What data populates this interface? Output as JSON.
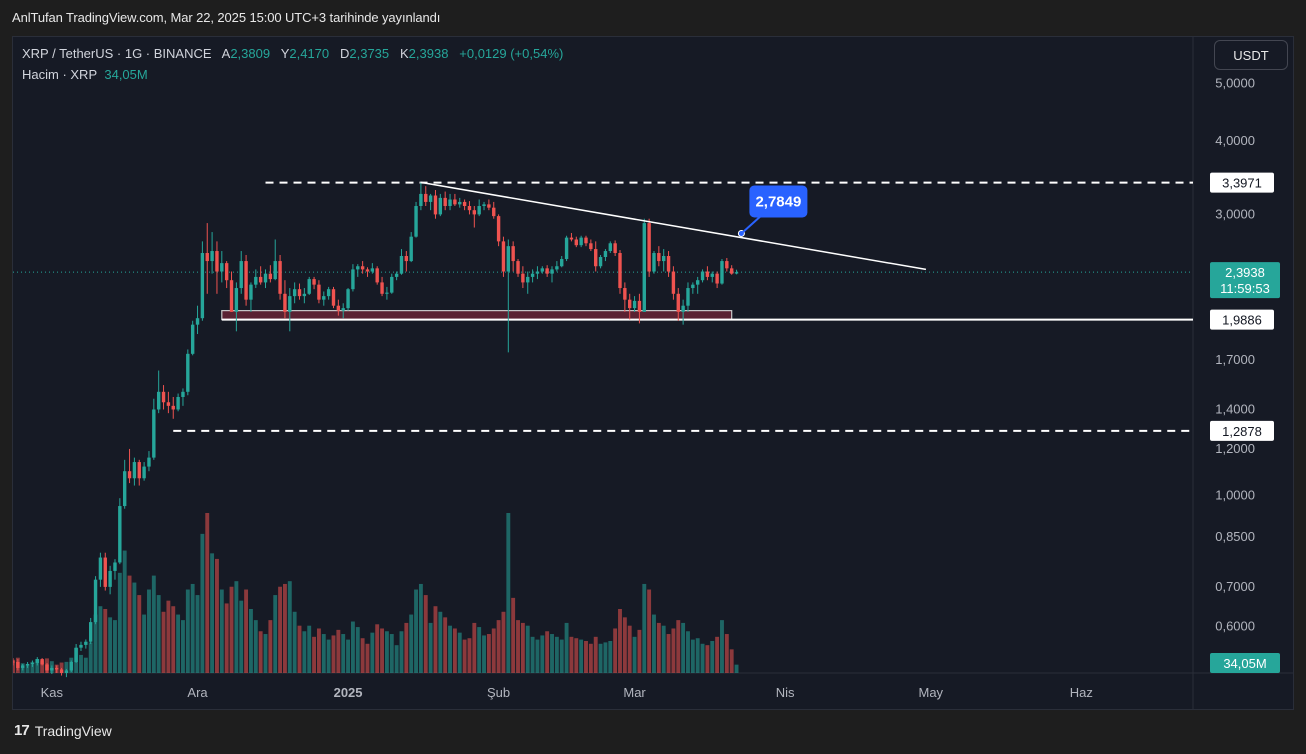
{
  "header": {
    "published": "AnlTufan TradingView.com, Mar 22, 2025 15:00 UTC+3 tarihinde yayınlandı"
  },
  "legend": {
    "symbol": "XRP / TetherUS · 1G · BINANCE",
    "open_label": "A",
    "open": "2,3809",
    "high_label": "Y",
    "high": "2,4170",
    "low_label": "D",
    "low": "2,3735",
    "close_label": "K",
    "close": "2,3938",
    "change": "+0,0129 (+0,54%)",
    "volume_label": "Hacim · XRP",
    "volume": "34,05M"
  },
  "currency_button": "USDT",
  "footer": {
    "brand": "TradingView",
    "logo": "17"
  },
  "colors": {
    "up": "#26a69a",
    "down": "#ef5350",
    "callout": "#2962ff"
  },
  "chart_data": {
    "type": "candlestick",
    "symbol": "XRP / TetherUS",
    "timeframe": "1G",
    "exchange": "BINANCE",
    "y_scale": "log",
    "ylim": [
      0.5,
      6.0
    ],
    "y_ticks": [
      {
        "value": 5.0,
        "label": "5,0000"
      },
      {
        "value": 4.0,
        "label": "4,0000"
      },
      {
        "value": 3.0,
        "label": "3,0000"
      },
      {
        "value": 1.7,
        "label": "1,7000"
      },
      {
        "value": 1.4,
        "label": "1,4000"
      },
      {
        "value": 1.2,
        "label": "1,2000"
      },
      {
        "value": 1.0,
        "label": "1,0000"
      },
      {
        "value": 0.85,
        "label": "0,8500"
      },
      {
        "value": 0.7,
        "label": "0,7000"
      },
      {
        "value": 0.6,
        "label": "0,6000"
      }
    ],
    "x_ticks": [
      {
        "date": "2024-11-01",
        "label": "Kas",
        "bold": false
      },
      {
        "date": "2024-12-01",
        "label": "Ara",
        "bold": false
      },
      {
        "date": "2025-01-01",
        "label": "2025",
        "bold": true
      },
      {
        "date": "2025-02-01",
        "label": "Şub",
        "bold": false
      },
      {
        "date": "2025-03-01",
        "label": "Mar",
        "bold": false
      },
      {
        "date": "2025-04-01",
        "label": "Nis",
        "bold": false
      },
      {
        "date": "2025-05-01",
        "label": "May",
        "bold": false
      },
      {
        "date": "2025-06-01",
        "label": "Haz",
        "bold": false
      }
    ],
    "x_range": [
      "2024-10-24",
      "2025-06-24"
    ],
    "last_price": {
      "value": 2.3938,
      "label": "2,3938",
      "countdown": "11:59:53"
    },
    "volume_last_label": "34,05M",
    "levels": [
      {
        "value": 3.3971,
        "label": "3,3971",
        "style": "dashed",
        "from": "2024-12-15"
      },
      {
        "value": 1.9886,
        "label": "1,9886",
        "style": "solid",
        "from": "2024-12-06"
      },
      {
        "value": 1.2878,
        "label": "1,2878",
        "style": "dashed",
        "from": "2024-11-26"
      }
    ],
    "support_zone": {
      "from": "2024-12-06",
      "to": "2025-03-21",
      "low": 1.99,
      "high": 2.06
    },
    "trendline": {
      "start": {
        "date": "2025-01-16",
        "value": 3.4
      },
      "end": {
        "date": "2025-04-30",
        "value": 2.42
      }
    },
    "callout": {
      "label": "2,7849",
      "date": "2025-03-23",
      "value": 2.7849
    },
    "candles": [
      [
        "2024-10-24",
        0.523,
        0.53,
        0.515,
        0.522,
        95
      ],
      [
        "2024-10-25",
        0.522,
        0.528,
        0.505,
        0.51,
        110
      ],
      [
        "2024-10-26",
        0.51,
        0.518,
        0.505,
        0.515,
        70
      ],
      [
        "2024-10-27",
        0.515,
        0.522,
        0.51,
        0.518,
        60
      ],
      [
        "2024-10-28",
        0.518,
        0.525,
        0.512,
        0.52,
        80
      ],
      [
        "2024-10-29",
        0.52,
        0.532,
        0.515,
        0.528,
        100
      ],
      [
        "2024-10-30",
        0.528,
        0.53,
        0.515,
        0.517,
        90
      ],
      [
        "2024-10-31",
        0.517,
        0.52,
        0.5,
        0.505,
        105
      ],
      [
        "2024-11-01",
        0.505,
        0.515,
        0.498,
        0.51,
        85
      ],
      [
        "2024-11-02",
        0.51,
        0.515,
        0.5,
        0.507,
        60
      ],
      [
        "2024-11-03",
        0.507,
        0.51,
        0.495,
        0.5,
        75
      ],
      [
        "2024-11-04",
        0.5,
        0.508,
        0.492,
        0.505,
        80
      ],
      [
        "2024-11-05",
        0.505,
        0.525,
        0.502,
        0.522,
        110
      ],
      [
        "2024-11-06",
        0.522,
        0.56,
        0.52,
        0.552,
        180
      ],
      [
        "2024-11-07",
        0.552,
        0.565,
        0.545,
        0.558,
        130
      ],
      [
        "2024-11-08",
        0.558,
        0.57,
        0.55,
        0.565,
        110
      ],
      [
        "2024-11-09",
        0.565,
        0.62,
        0.56,
        0.61,
        220
      ],
      [
        "2024-11-10",
        0.61,
        0.73,
        0.605,
        0.72,
        420
      ],
      [
        "2024-11-11",
        0.72,
        0.8,
        0.7,
        0.785,
        480
      ],
      [
        "2024-11-12",
        0.785,
        0.8,
        0.69,
        0.7,
        460
      ],
      [
        "2024-11-13",
        0.7,
        0.76,
        0.68,
        0.745,
        400
      ],
      [
        "2024-11-14",
        0.745,
        0.78,
        0.72,
        0.77,
        380
      ],
      [
        "2024-11-15",
        0.77,
        0.99,
        0.765,
        0.96,
        720
      ],
      [
        "2024-11-16",
        0.96,
        1.15,
        0.95,
        1.1,
        880
      ],
      [
        "2024-11-17",
        1.1,
        1.2,
        1.05,
        1.07,
        700
      ],
      [
        "2024-11-18",
        1.07,
        1.16,
        1.04,
        1.14,
        650
      ],
      [
        "2024-11-19",
        1.14,
        1.15,
        1.04,
        1.07,
        560
      ],
      [
        "2024-11-20",
        1.07,
        1.14,
        1.06,
        1.12,
        420
      ],
      [
        "2024-11-21",
        1.12,
        1.19,
        1.1,
        1.16,
        600
      ],
      [
        "2024-11-22",
        1.16,
        1.46,
        1.15,
        1.4,
        700
      ],
      [
        "2024-11-23",
        1.4,
        1.63,
        1.38,
        1.5,
        560
      ],
      [
        "2024-11-24",
        1.5,
        1.54,
        1.4,
        1.44,
        440
      ],
      [
        "2024-11-25",
        1.44,
        1.5,
        1.38,
        1.42,
        520
      ],
      [
        "2024-11-26",
        1.42,
        1.47,
        1.35,
        1.4,
        480
      ],
      [
        "2024-11-27",
        1.4,
        1.49,
        1.39,
        1.47,
        420
      ],
      [
        "2024-11-28",
        1.47,
        1.52,
        1.42,
        1.5,
        380
      ],
      [
        "2024-11-29",
        1.5,
        1.77,
        1.48,
        1.74,
        600
      ],
      [
        "2024-11-30",
        1.74,
        1.98,
        1.73,
        1.95,
        640
      ],
      [
        "2024-12-01",
        1.95,
        2.1,
        1.88,
        2.0,
        560
      ],
      [
        "2024-12-02",
        2.0,
        2.7,
        1.98,
        2.58,
        1000
      ],
      [
        "2024-12-03",
        2.58,
        2.9,
        2.2,
        2.5,
        1150
      ],
      [
        "2024-12-04",
        2.5,
        2.8,
        2.38,
        2.6,
        860
      ],
      [
        "2024-12-05",
        2.6,
        2.7,
        2.2,
        2.4,
        820
      ],
      [
        "2024-12-06",
        2.4,
        2.6,
        2.3,
        2.48,
        600
      ],
      [
        "2024-12-07",
        2.48,
        2.5,
        2.25,
        2.32,
        500
      ],
      [
        "2024-12-08",
        2.32,
        2.4,
        2.05,
        2.05,
        620
      ],
      [
        "2024-12-09",
        2.05,
        2.3,
        1.9,
        2.25,
        660
      ],
      [
        "2024-12-10",
        2.25,
        2.6,
        2.2,
        2.5,
        520
      ],
      [
        "2024-12-11",
        2.5,
        2.56,
        2.1,
        2.15,
        600
      ],
      [
        "2024-12-12",
        2.15,
        2.3,
        2.05,
        2.28,
        460
      ],
      [
        "2024-12-13",
        2.28,
        2.42,
        2.25,
        2.35,
        380
      ],
      [
        "2024-12-14",
        2.35,
        2.45,
        2.28,
        2.3,
        300
      ],
      [
        "2024-12-15",
        2.3,
        2.42,
        2.25,
        2.38,
        280
      ],
      [
        "2024-12-16",
        2.38,
        2.46,
        2.3,
        2.33,
        380
      ],
      [
        "2024-12-17",
        2.33,
        2.72,
        2.32,
        2.5,
        560
      ],
      [
        "2024-12-18",
        2.5,
        2.56,
        2.15,
        2.2,
        620
      ],
      [
        "2024-12-19",
        2.2,
        2.32,
        2.0,
        2.05,
        640
      ],
      [
        "2024-12-20",
        2.05,
        2.25,
        1.9,
        2.18,
        660
      ],
      [
        "2024-12-21",
        2.18,
        2.3,
        2.12,
        2.24,
        440
      ],
      [
        "2024-12-22",
        2.24,
        2.29,
        2.15,
        2.18,
        340
      ],
      [
        "2024-12-23",
        2.18,
        2.25,
        2.12,
        2.2,
        300
      ],
      [
        "2024-12-24",
        2.2,
        2.35,
        2.19,
        2.33,
        340
      ],
      [
        "2024-12-25",
        2.33,
        2.35,
        2.24,
        2.28,
        260
      ],
      [
        "2024-12-26",
        2.28,
        2.32,
        2.12,
        2.15,
        320
      ],
      [
        "2024-12-27",
        2.15,
        2.22,
        2.1,
        2.18,
        280
      ],
      [
        "2024-12-28",
        2.18,
        2.26,
        2.15,
        2.24,
        240
      ],
      [
        "2024-12-29",
        2.24,
        2.26,
        2.08,
        2.1,
        270
      ],
      [
        "2024-12-30",
        2.1,
        2.15,
        2.02,
        2.06,
        310
      ],
      [
        "2024-12-31",
        2.06,
        2.12,
        2.0,
        2.08,
        280
      ],
      [
        "2025-01-01",
        2.08,
        2.25,
        2.06,
        2.24,
        240
      ],
      [
        "2025-01-02",
        2.24,
        2.47,
        2.22,
        2.42,
        370
      ],
      [
        "2025-01-03",
        2.42,
        2.47,
        2.35,
        2.45,
        330
      ],
      [
        "2025-01-04",
        2.45,
        2.5,
        2.38,
        2.42,
        250
      ],
      [
        "2025-01-05",
        2.42,
        2.44,
        2.35,
        2.4,
        210
      ],
      [
        "2025-01-06",
        2.4,
        2.48,
        2.38,
        2.43,
        290
      ],
      [
        "2025-01-07",
        2.43,
        2.45,
        2.28,
        2.3,
        350
      ],
      [
        "2025-01-08",
        2.3,
        2.35,
        2.18,
        2.2,
        320
      ],
      [
        "2025-01-09",
        2.2,
        2.26,
        2.15,
        2.21,
        300
      ],
      [
        "2025-01-10",
        2.21,
        2.38,
        2.2,
        2.35,
        280
      ],
      [
        "2025-01-11",
        2.35,
        2.4,
        2.32,
        2.38,
        200
      ],
      [
        "2025-01-12",
        2.38,
        2.62,
        2.37,
        2.55,
        300
      ],
      [
        "2025-01-13",
        2.55,
        2.6,
        2.4,
        2.5,
        360
      ],
      [
        "2025-01-14",
        2.5,
        2.8,
        2.49,
        2.75,
        420
      ],
      [
        "2025-01-15",
        2.75,
        3.15,
        2.74,
        3.1,
        600
      ],
      [
        "2025-01-16",
        3.1,
        3.4,
        3.05,
        3.25,
        640
      ],
      [
        "2025-01-17",
        3.25,
        3.35,
        3.1,
        3.15,
        560
      ],
      [
        "2025-01-18",
        3.15,
        3.25,
        3.05,
        3.23,
        360
      ],
      [
        "2025-01-19",
        3.23,
        3.3,
        2.95,
        3.0,
        480
      ],
      [
        "2025-01-20",
        3.0,
        3.25,
        2.98,
        3.2,
        440
      ],
      [
        "2025-01-21",
        3.2,
        3.28,
        3.05,
        3.1,
        400
      ],
      [
        "2025-01-22",
        3.1,
        3.25,
        3.05,
        3.18,
        340
      ],
      [
        "2025-01-23",
        3.18,
        3.25,
        3.1,
        3.12,
        320
      ],
      [
        "2025-01-24",
        3.12,
        3.2,
        3.08,
        3.15,
        290
      ],
      [
        "2025-01-25",
        3.15,
        3.18,
        3.05,
        3.1,
        240
      ],
      [
        "2025-01-26",
        3.1,
        3.16,
        3.0,
        3.05,
        250
      ],
      [
        "2025-01-27",
        3.05,
        3.1,
        2.85,
        3.0,
        360
      ],
      [
        "2025-01-28",
        3.0,
        3.18,
        2.98,
        3.1,
        330
      ],
      [
        "2025-01-29",
        3.1,
        3.15,
        3.05,
        3.12,
        270
      ],
      [
        "2025-01-30",
        3.12,
        3.18,
        3.05,
        3.08,
        280
      ],
      [
        "2025-01-31",
        3.08,
        3.15,
        2.95,
        2.98,
        320
      ],
      [
        "2025-02-01",
        2.98,
        3.0,
        2.65,
        2.7,
        380
      ],
      [
        "2025-02-02",
        2.7,
        2.75,
        2.35,
        2.4,
        440
      ],
      [
        "2025-02-03",
        2.4,
        2.72,
        1.75,
        2.65,
        1150
      ],
      [
        "2025-02-04",
        2.65,
        2.7,
        2.4,
        2.5,
        540
      ],
      [
        "2025-02-05",
        2.5,
        2.52,
        2.35,
        2.38,
        380
      ],
      [
        "2025-02-06",
        2.38,
        2.45,
        2.25,
        2.3,
        360
      ],
      [
        "2025-02-07",
        2.3,
        2.4,
        2.2,
        2.35,
        340
      ],
      [
        "2025-02-08",
        2.35,
        2.42,
        2.3,
        2.38,
        260
      ],
      [
        "2025-02-09",
        2.38,
        2.45,
        2.33,
        2.4,
        240
      ],
      [
        "2025-02-10",
        2.4,
        2.45,
        2.38,
        2.43,
        270
      ],
      [
        "2025-02-11",
        2.43,
        2.46,
        2.35,
        2.38,
        300
      ],
      [
        "2025-02-12",
        2.38,
        2.45,
        2.3,
        2.42,
        280
      ],
      [
        "2025-02-13",
        2.42,
        2.5,
        2.4,
        2.45,
        260
      ],
      [
        "2025-02-14",
        2.45,
        2.55,
        2.44,
        2.52,
        240
      ],
      [
        "2025-02-15",
        2.52,
        2.76,
        2.5,
        2.74,
        360
      ],
      [
        "2025-02-16",
        2.74,
        2.79,
        2.7,
        2.72,
        260
      ],
      [
        "2025-02-17",
        2.72,
        2.75,
        2.64,
        2.66,
        250
      ],
      [
        "2025-02-18",
        2.66,
        2.76,
        2.64,
        2.74,
        240
      ],
      [
        "2025-02-19",
        2.74,
        2.76,
        2.65,
        2.68,
        230
      ],
      [
        "2025-02-20",
        2.68,
        2.72,
        2.6,
        2.62,
        210
      ],
      [
        "2025-02-21",
        2.62,
        2.7,
        2.4,
        2.45,
        260
      ],
      [
        "2025-02-22",
        2.45,
        2.56,
        2.43,
        2.54,
        210
      ],
      [
        "2025-02-23",
        2.54,
        2.62,
        2.5,
        2.6,
        220
      ],
      [
        "2025-02-24",
        2.6,
        2.7,
        2.58,
        2.68,
        230
      ],
      [
        "2025-02-25",
        2.68,
        2.71,
        2.55,
        2.58,
        320
      ],
      [
        "2025-02-26",
        2.58,
        2.61,
        2.2,
        2.25,
        460
      ],
      [
        "2025-02-27",
        2.25,
        2.3,
        2.05,
        2.15,
        400
      ],
      [
        "2025-02-28",
        2.15,
        2.2,
        1.99,
        2.08,
        340
      ],
      [
        "2025-03-01",
        2.08,
        2.18,
        2.05,
        2.14,
        260
      ],
      [
        "2025-03-02",
        2.14,
        2.2,
        1.96,
        2.05,
        310
      ],
      [
        "2025-03-03",
        2.05,
        2.95,
        2.05,
        2.9,
        640
      ],
      [
        "2025-03-04",
        2.9,
        2.95,
        2.35,
        2.4,
        600
      ],
      [
        "2025-03-05",
        2.4,
        2.6,
        2.38,
        2.58,
        420
      ],
      [
        "2025-03-06",
        2.58,
        2.65,
        2.45,
        2.5,
        360
      ],
      [
        "2025-03-07",
        2.5,
        2.62,
        2.4,
        2.55,
        340
      ],
      [
        "2025-03-08",
        2.55,
        2.6,
        2.35,
        2.4,
        280
      ],
      [
        "2025-03-09",
        2.4,
        2.45,
        2.15,
        2.2,
        320
      ],
      [
        "2025-03-10",
        2.2,
        2.25,
        1.98,
        2.05,
        380
      ],
      [
        "2025-03-11",
        2.05,
        2.15,
        1.95,
        2.1,
        360
      ],
      [
        "2025-03-12",
        2.1,
        2.3,
        2.05,
        2.25,
        300
      ],
      [
        "2025-03-13",
        2.25,
        2.3,
        2.2,
        2.28,
        240
      ],
      [
        "2025-03-14",
        2.28,
        2.35,
        2.2,
        2.32,
        250
      ],
      [
        "2025-03-15",
        2.32,
        2.42,
        2.3,
        2.4,
        210
      ],
      [
        "2025-03-16",
        2.4,
        2.45,
        2.32,
        2.35,
        200
      ],
      [
        "2025-03-17",
        2.35,
        2.4,
        2.3,
        2.38,
        230
      ],
      [
        "2025-03-18",
        2.38,
        2.4,
        2.25,
        2.29,
        260
      ],
      [
        "2025-03-19",
        2.29,
        2.52,
        2.28,
        2.5,
        380
      ],
      [
        "2025-03-20",
        2.5,
        2.53,
        2.4,
        2.43,
        280
      ],
      [
        "2025-03-21",
        2.43,
        2.46,
        2.37,
        2.38,
        170
      ],
      [
        "2025-03-22",
        2.3809,
        2.417,
        2.3735,
        2.3938,
        60
      ]
    ]
  }
}
